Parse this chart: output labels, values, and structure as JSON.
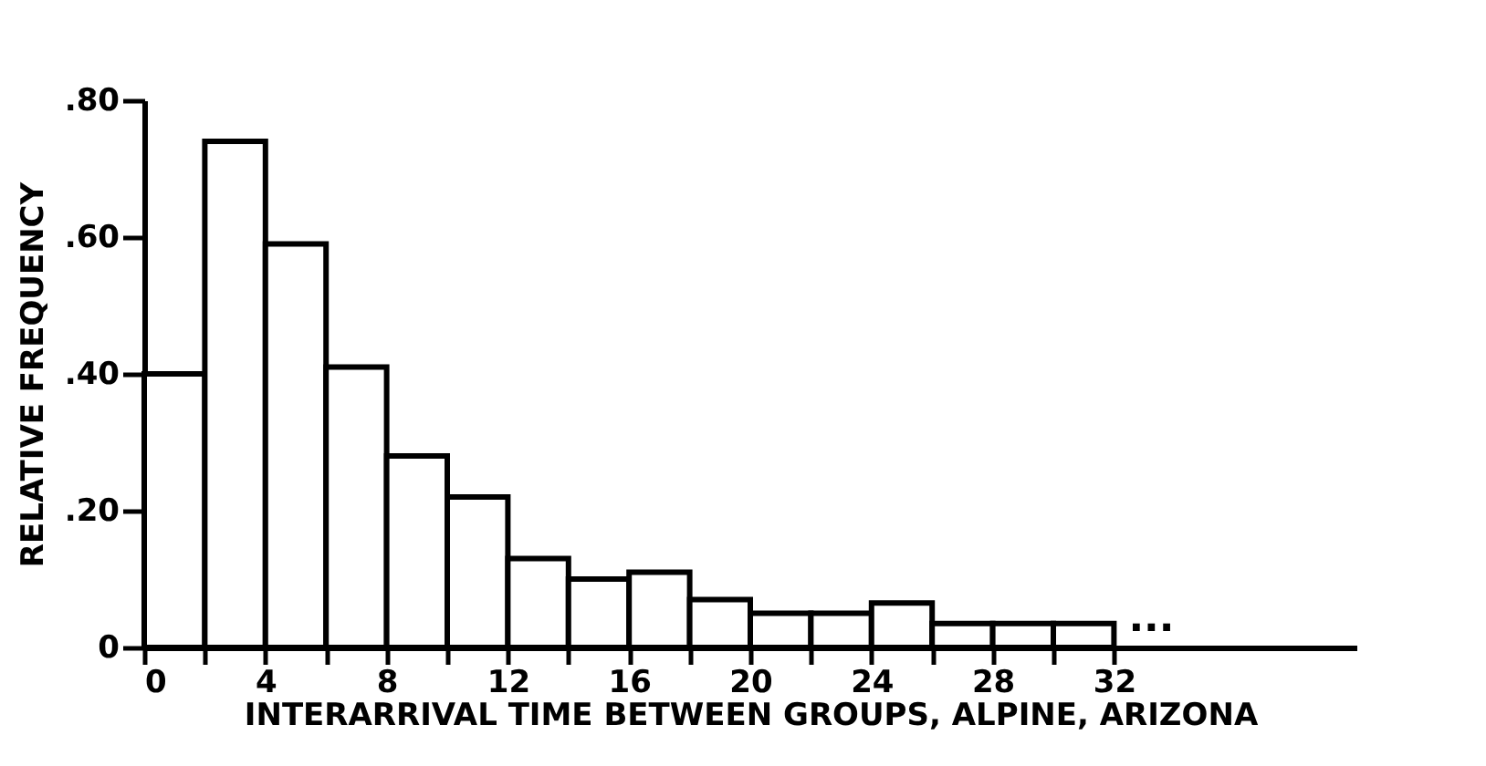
{
  "chart_data": {
    "type": "histogram",
    "xlabel": "INTERARRIVAL TIME BETWEEN GROUPS, ALPINE, ARIZONA",
    "ylabel": "RELATIVE FREQUENCY",
    "bins": [
      0,
      2,
      4,
      6,
      8,
      10,
      12,
      14,
      16,
      18,
      20,
      22,
      24,
      26,
      28,
      30,
      32
    ],
    "values": [
      0.4,
      0.74,
      0.59,
      0.41,
      0.28,
      0.22,
      0.13,
      0.1,
      0.11,
      0.07,
      0.05,
      0.05,
      0.065,
      0.035,
      0.035,
      0.035
    ],
    "color": "#ffffff",
    "xlim": [
      0,
      40
    ],
    "xticks": [
      0,
      {
        "value": 2,
        "label": null
      },
      4,
      {
        "value": 6,
        "label": null
      },
      8,
      {
        "value": 10,
        "label": null
      },
      12,
      {
        "value": 14,
        "label": null
      },
      16,
      {
        "value": 18,
        "label": null
      },
      20,
      {
        "value": 22,
        "label": null
      },
      24,
      {
        "value": 26,
        "label": null
      },
      28,
      {
        "value": 30,
        "label": null
      },
      32
    ],
    "ylim": [
      0,
      0.8
    ],
    "yticks": [
      0,
      {
        "value": 0.2,
        "label": ".20"
      },
      {
        "value": 0.4,
        "label": ".40"
      },
      {
        "value": 0.6,
        "label": ".60"
      },
      {
        "value": 0.8,
        "label": ".80"
      }
    ],
    "annotations": [
      "..."
    ],
    "grid": false
  }
}
